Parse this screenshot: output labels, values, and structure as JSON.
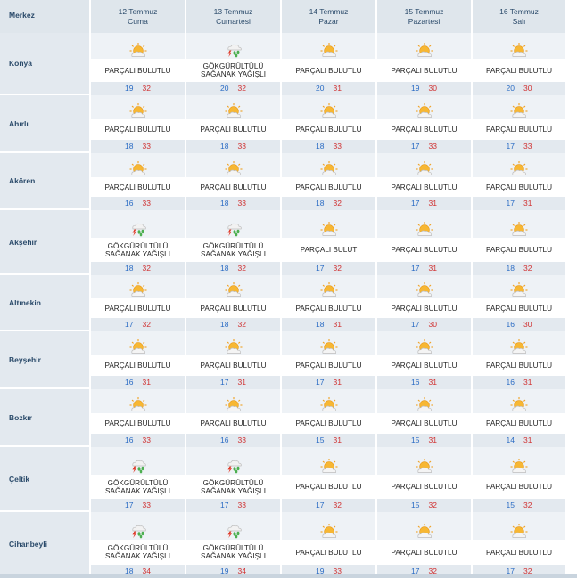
{
  "header": {
    "merkez": "Merkez",
    "days": [
      {
        "date": "12 Temmuz",
        "weekday": "Cuma"
      },
      {
        "date": "13 Temmuz",
        "weekday": "Cumartesi"
      },
      {
        "date": "14 Temmuz",
        "weekday": "Pazar"
      },
      {
        "date": "15 Temmuz",
        "weekday": "Pazartesi"
      },
      {
        "date": "16 Temmuz",
        "weekday": "Salı"
      }
    ]
  },
  "conditions": {
    "partly": {
      "lines": [
        "PARÇALI BULUTLU"
      ],
      "icon": "partly-cloudy-icon"
    },
    "partly_cut": {
      "lines": [
        "PARÇALI BULUT"
      ],
      "icon": "partly-cloudy-icon"
    },
    "storm": {
      "lines": [
        "GÖKGÜRÜLTÜLÜ",
        "SAĞANAK YAĞIŞLI"
      ],
      "icon": "thunderstorm-icon"
    }
  },
  "rows": [
    {
      "city": "Konya",
      "days": [
        {
          "cond": "partly",
          "min": "19",
          "max": "32"
        },
        {
          "cond": "storm",
          "min": "20",
          "max": "32"
        },
        {
          "cond": "partly",
          "min": "20",
          "max": "31"
        },
        {
          "cond": "partly",
          "min": "19",
          "max": "30"
        },
        {
          "cond": "partly",
          "min": "20",
          "max": "30"
        }
      ]
    },
    {
      "city": "Ahırlı",
      "days": [
        {
          "cond": "partly",
          "min": "18",
          "max": "33"
        },
        {
          "cond": "partly",
          "min": "18",
          "max": "33"
        },
        {
          "cond": "partly",
          "min": "18",
          "max": "33"
        },
        {
          "cond": "partly",
          "min": "17",
          "max": "33"
        },
        {
          "cond": "partly",
          "min": "17",
          "max": "33"
        }
      ]
    },
    {
      "city": "Akören",
      "days": [
        {
          "cond": "partly",
          "min": "16",
          "max": "33"
        },
        {
          "cond": "partly",
          "min": "18",
          "max": "33"
        },
        {
          "cond": "partly",
          "min": "18",
          "max": "32"
        },
        {
          "cond": "partly",
          "min": "17",
          "max": "31"
        },
        {
          "cond": "partly",
          "min": "17",
          "max": "31"
        }
      ]
    },
    {
      "city": "Akşehir",
      "days": [
        {
          "cond": "storm",
          "min": "18",
          "max": "32"
        },
        {
          "cond": "storm",
          "min": "18",
          "max": "32"
        },
        {
          "cond": "partly_cut",
          "min": "17",
          "max": "32"
        },
        {
          "cond": "partly",
          "min": "17",
          "max": "31"
        },
        {
          "cond": "partly",
          "min": "18",
          "max": "32"
        }
      ]
    },
    {
      "city": "Altınekin",
      "days": [
        {
          "cond": "partly",
          "min": "17",
          "max": "32"
        },
        {
          "cond": "partly",
          "min": "18",
          "max": "32"
        },
        {
          "cond": "partly",
          "min": "18",
          "max": "31"
        },
        {
          "cond": "partly",
          "min": "17",
          "max": "30"
        },
        {
          "cond": "partly",
          "min": "16",
          "max": "30"
        }
      ]
    },
    {
      "city": "Beyşehir",
      "days": [
        {
          "cond": "partly",
          "min": "16",
          "max": "31"
        },
        {
          "cond": "partly",
          "min": "17",
          "max": "31"
        },
        {
          "cond": "partly",
          "min": "17",
          "max": "31"
        },
        {
          "cond": "partly",
          "min": "16",
          "max": "31"
        },
        {
          "cond": "partly",
          "min": "16",
          "max": "31"
        }
      ]
    },
    {
      "city": "Bozkır",
      "days": [
        {
          "cond": "partly",
          "min": "16",
          "max": "33"
        },
        {
          "cond": "partly",
          "min": "16",
          "max": "33"
        },
        {
          "cond": "partly",
          "min": "15",
          "max": "31"
        },
        {
          "cond": "partly",
          "min": "15",
          "max": "31"
        },
        {
          "cond": "partly",
          "min": "14",
          "max": "31"
        }
      ]
    },
    {
      "city": "Çeltik",
      "days": [
        {
          "cond": "storm",
          "min": "17",
          "max": "33"
        },
        {
          "cond": "storm",
          "min": "17",
          "max": "33"
        },
        {
          "cond": "partly",
          "min": "17",
          "max": "32"
        },
        {
          "cond": "partly",
          "min": "15",
          "max": "32"
        },
        {
          "cond": "partly",
          "min": "15",
          "max": "32"
        }
      ]
    },
    {
      "city": "Cihanbeyli",
      "days": [
        {
          "cond": "storm",
          "min": "18",
          "max": "34"
        },
        {
          "cond": "storm",
          "min": "19",
          "max": "34"
        },
        {
          "cond": "partly",
          "min": "19",
          "max": "33"
        },
        {
          "cond": "partly",
          "min": "17",
          "max": "32"
        },
        {
          "cond": "partly",
          "min": "17",
          "max": "32"
        }
      ]
    }
  ],
  "colors": {
    "min_temp": "#2b6cc4",
    "max_temp": "#d03030",
    "header_bg": "#dfe6ec"
  }
}
